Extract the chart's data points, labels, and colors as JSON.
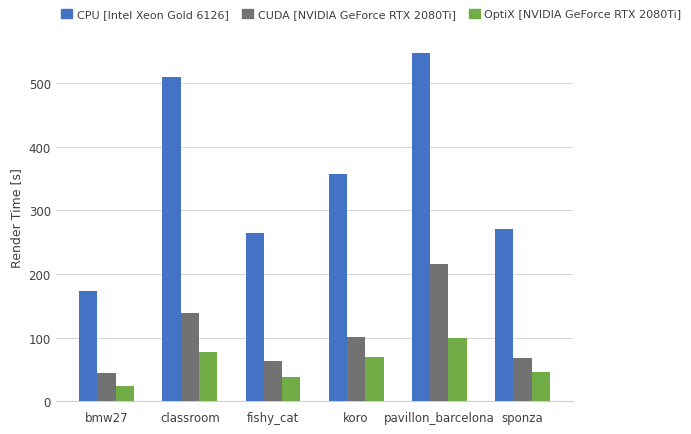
{
  "categories": [
    "bmw27",
    "classroom",
    "fishy_cat",
    "koro",
    "pavillon_barcelona",
    "sponza"
  ],
  "series": [
    {
      "label": "CPU [Intel Xeon Gold 6126]",
      "color": "#4472C4",
      "values": [
        174,
        510,
        265,
        357,
        548,
        271
      ]
    },
    {
      "label": "CUDA [NVIDIA GeForce RTX 2080Ti]",
      "color": "#727272",
      "values": [
        44,
        138,
        63,
        101,
        216,
        68
      ]
    },
    {
      "label": "OptiX [NVIDIA GeForce RTX 2080Ti]",
      "color": "#70AD47",
      "values": [
        24,
        78,
        38,
        70,
        100,
        46
      ]
    }
  ],
  "ylabel": "Render Time [s]",
  "ylim": [
    0,
    580
  ],
  "yticks": [
    0,
    100,
    200,
    300,
    400,
    500
  ],
  "background_color": "#ffffff",
  "grid_color": "#d9d9d9",
  "bar_width": 0.22,
  "legend_fontsize": 8,
  "axis_fontsize": 9,
  "tick_fontsize": 8.5
}
